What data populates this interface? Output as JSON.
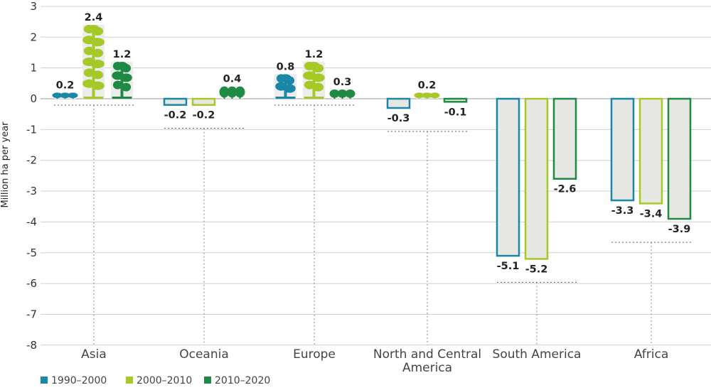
{
  "chart_data": {
    "type": "bar",
    "title": "",
    "xlabel": "",
    "ylabel": "Million ha per year",
    "ylim": [
      -8,
      3
    ],
    "yticks": [
      "3",
      "2",
      "1",
      "0",
      "-1",
      "-2",
      "-3",
      "-4",
      "-5",
      "-6",
      "-7",
      "-8"
    ],
    "categories": [
      "Asia",
      "Oceania",
      "Europe",
      "North and Central America",
      "South America",
      "Africa"
    ],
    "category_lines": [
      [
        "Asia"
      ],
      [
        "Oceania"
      ],
      [
        "Europe"
      ],
      [
        "North and Central",
        "America"
      ],
      [
        "South America"
      ],
      [
        "Africa"
      ]
    ],
    "series": [
      {
        "name": "1990–2000",
        "color": "#1a86a8",
        "values": [
          0.2,
          -0.2,
          0.8,
          -0.3,
          -5.1,
          -3.3
        ],
        "labels": [
          "0.2",
          "-0.2",
          "0.8",
          "-0.3",
          "-5.1",
          "-3.3"
        ]
      },
      {
        "name": "2000–2010",
        "color": "#a6c928",
        "values": [
          2.4,
          -0.2,
          1.2,
          0.2,
          -5.2,
          -3.4
        ],
        "labels": [
          "2.4",
          "-0.2",
          "1.2",
          "0.2",
          "-5.2",
          "-3.4"
        ]
      },
      {
        "name": "2010–2020",
        "color": "#1f8a43",
        "values": [
          1.2,
          0.4,
          0.3,
          -0.1,
          -2.6,
          -3.9
        ],
        "labels": [
          "1.2",
          "0.4",
          "0.3",
          "-0.1",
          "-2.6",
          "-3.9"
        ]
      }
    ],
    "negative_fill": "#e6e6e2",
    "positive_style": "tree-icons",
    "grid": true,
    "legend_position": "bottom-left"
  }
}
